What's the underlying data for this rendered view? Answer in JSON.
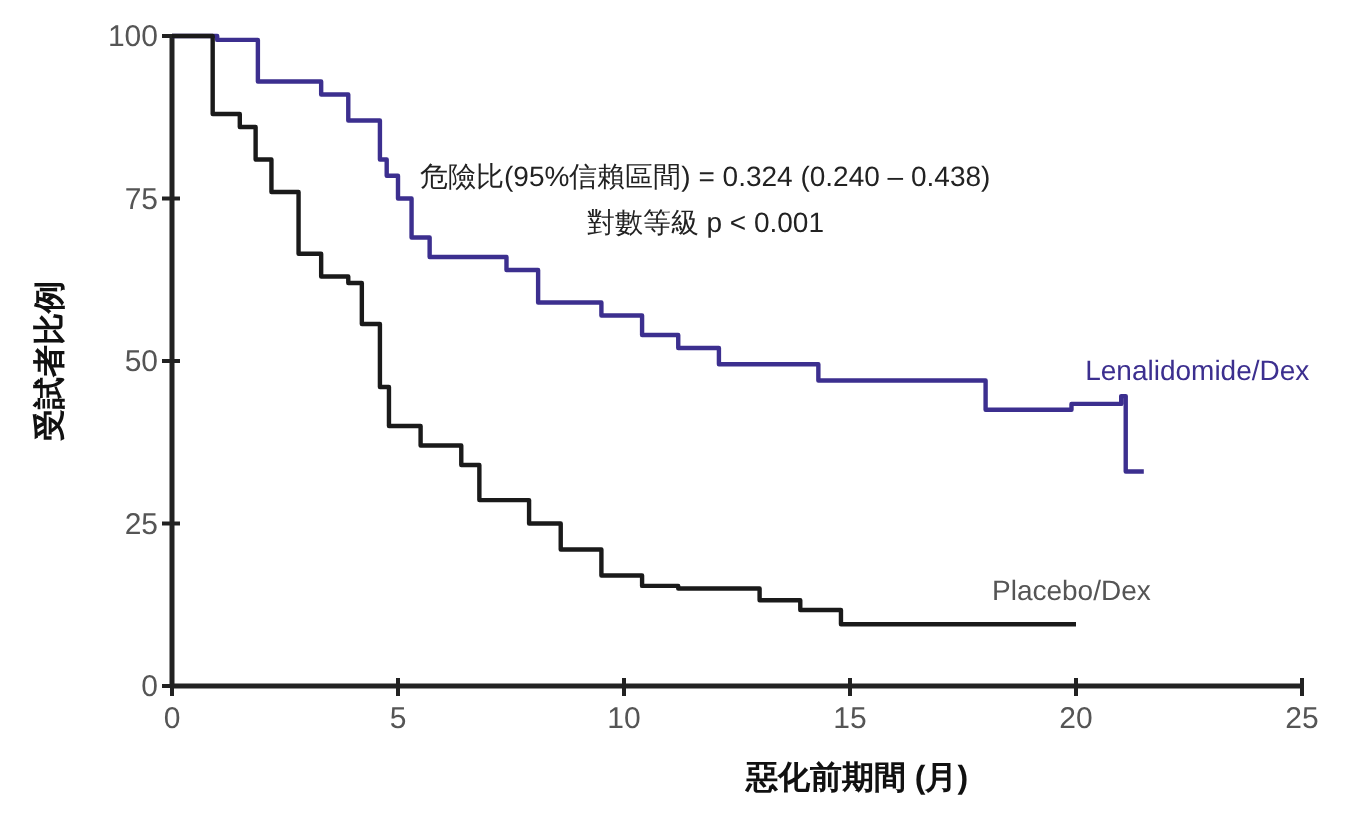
{
  "chart_data": {
    "type": "step",
    "ylabel": "受試者比例",
    "xlabel": "惡化前期間 (月)",
    "xlim": [
      0,
      25
    ],
    "xticks": [
      0,
      5,
      10,
      15,
      20,
      25
    ],
    "ylim": [
      0,
      100
    ],
    "yticks": [
      0,
      25,
      50,
      75,
      100
    ],
    "grid": false,
    "legend": false,
    "annotations": [
      "危險比(95%信賴區間) = 0.324 (0.240 – 0.438)",
      "對數等級 p < 0.001"
    ],
    "series": [
      {
        "name": "Lenalidomide/Dex",
        "color": "#3c2f8f",
        "x": [
          0,
          1.0,
          1.9,
          2.8,
          3.3,
          3.9,
          4.6,
          4.75,
          5.0,
          5.3,
          5.7,
          6.8,
          7.4,
          8.1,
          9.5,
          10.4,
          11.2,
          12.1,
          13.0,
          14.3,
          18.0,
          19.9,
          21.0,
          21.1,
          21.5
        ],
        "values": [
          100,
          99.4,
          93,
          93,
          91,
          87,
          81,
          78.5,
          75,
          69,
          66,
          66,
          64,
          59,
          57,
          54,
          52,
          49.5,
          49.5,
          47,
          42.5,
          43.4,
          44.6,
          33,
          33
        ]
      },
      {
        "name": "Placebo/Dex",
        "color": "#1a1a1a",
        "x": [
          0,
          0.9,
          1.5,
          1.85,
          2.2,
          2.8,
          3.3,
          3.9,
          4.2,
          4.6,
          4.8,
          5.5,
          6.4,
          6.8,
          7.9,
          8.6,
          9.5,
          10.4,
          11.2,
          13.0,
          13.9,
          14.8,
          20.0
        ],
        "values": [
          100,
          88,
          86,
          81,
          76,
          66.5,
          63,
          62,
          55.7,
          46,
          40,
          37,
          34,
          28.6,
          25,
          21,
          17,
          15.4,
          15,
          13.2,
          11.7,
          9.5,
          9.5
        ]
      }
    ]
  }
}
